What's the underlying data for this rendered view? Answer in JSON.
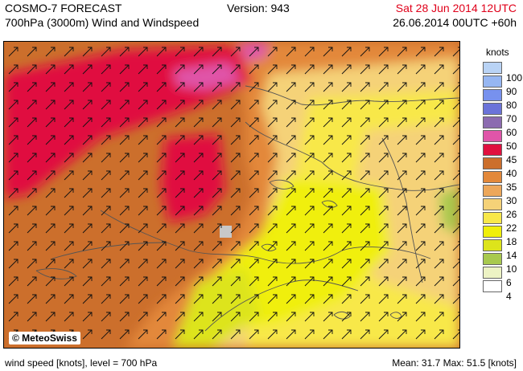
{
  "header": {
    "model": "COSMO-7 FORECAST",
    "field": "700hPa (3000m) Wind and Windspeed",
    "version": "Version: 943",
    "valid_time": "Sat 28 Jun 2014 12UTC",
    "run_time": "26.06.2014 00UTC +60h"
  },
  "colors": {
    "valid_time": "#e0001a"
  },
  "map": {
    "copyright": "© MeteoSwiss",
    "wind_direction": "southwest (arrows pointing northeast)"
  },
  "legend": {
    "unit": "knots",
    "levels": [
      {
        "label": "100",
        "color": "#b9d3f5"
      },
      {
        "label": "90",
        "color": "#96b6f2"
      },
      {
        "label": "80",
        "color": "#7791ee"
      },
      {
        "label": "70",
        "color": "#6b73d9"
      },
      {
        "label": "60",
        "color": "#8c6bb0"
      },
      {
        "label": "50",
        "color": "#e055a9"
      },
      {
        "label": "45",
        "color": "#e0103f"
      },
      {
        "label": "40",
        "color": "#cc6f2c"
      },
      {
        "label": "35",
        "color": "#e3883a"
      },
      {
        "label": "30",
        "color": "#eda75a"
      },
      {
        "label": "26",
        "color": "#f5d278"
      },
      {
        "label": "22",
        "color": "#f8e84a"
      },
      {
        "label": "18",
        "color": "#f0ef0a"
      },
      {
        "label": "14",
        "color": "#dde41b"
      },
      {
        "label": "10",
        "color": "#a8c94e"
      },
      {
        "label": "6",
        "color": "#edf3c4"
      },
      {
        "label": "4",
        "color": "#ffffff"
      }
    ]
  },
  "footer": {
    "left": "wind speed [knots], level = 700 hPa",
    "right": "Mean:  31.7 Max:  51.5 [knots]"
  }
}
